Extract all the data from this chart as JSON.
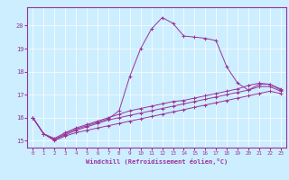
{
  "bg_color": "#cceeff",
  "line_color": "#993399",
  "marker": "+",
  "xlabel": "Windchill (Refroidissement éolien,°C)",
  "xlim": [
    -0.5,
    23.5
  ],
  "ylim": [
    14.7,
    20.8
  ],
  "yticks": [
    15,
    16,
    17,
    18,
    19,
    20
  ],
  "xticks": [
    0,
    1,
    2,
    3,
    4,
    5,
    6,
    7,
    8,
    9,
    10,
    11,
    12,
    13,
    14,
    15,
    16,
    17,
    18,
    19,
    20,
    21,
    22,
    23
  ],
  "series": [
    [
      16.0,
      15.3,
      15.0,
      15.2,
      15.35,
      15.45,
      15.55,
      15.65,
      15.75,
      15.85,
      15.95,
      16.05,
      16.15,
      16.25,
      16.35,
      16.45,
      16.55,
      16.65,
      16.75,
      16.85,
      16.95,
      17.05,
      17.15,
      17.05
    ],
    [
      16.0,
      15.3,
      15.05,
      15.25,
      15.45,
      15.6,
      15.75,
      15.9,
      16.0,
      16.1,
      16.2,
      16.3,
      16.4,
      16.5,
      16.6,
      16.7,
      16.8,
      16.9,
      17.0,
      17.1,
      17.2,
      17.35,
      17.35,
      17.15
    ],
    [
      16.0,
      15.3,
      15.1,
      15.35,
      15.55,
      15.7,
      15.85,
      16.0,
      16.15,
      16.3,
      16.4,
      16.5,
      16.6,
      16.7,
      16.75,
      16.85,
      16.95,
      17.05,
      17.15,
      17.25,
      17.4,
      17.5,
      17.45,
      17.25
    ],
    [
      16.0,
      15.3,
      15.05,
      15.3,
      15.5,
      15.65,
      15.8,
      15.95,
      16.3,
      17.8,
      19.0,
      19.85,
      20.35,
      20.1,
      19.55,
      19.5,
      19.45,
      19.35,
      18.2,
      17.5,
      17.2,
      17.45,
      17.45,
      17.2
    ]
  ]
}
